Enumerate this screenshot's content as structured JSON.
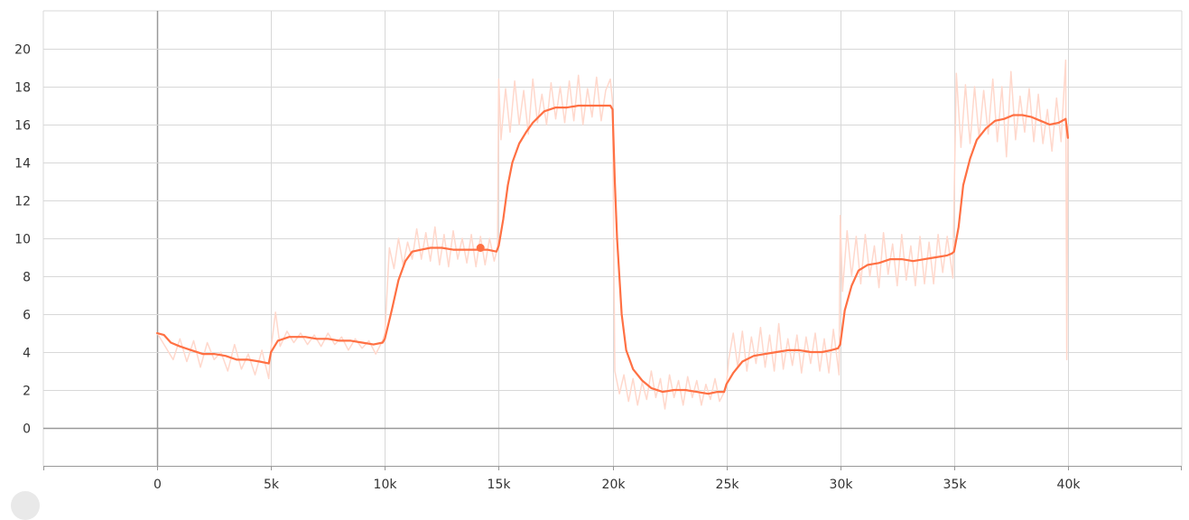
{
  "chart_data": {
    "type": "line",
    "title": "",
    "xlabel": "",
    "ylabel": "",
    "xlim": [
      -5000,
      45000
    ],
    "ylim": [
      -2,
      22
    ],
    "grid": true,
    "x_ticks": [
      {
        "value": 0,
        "label": "0"
      },
      {
        "value": 5000,
        "label": "5k"
      },
      {
        "value": 10000,
        "label": "10k"
      },
      {
        "value": 15000,
        "label": "15k"
      },
      {
        "value": 20000,
        "label": "20k"
      },
      {
        "value": 25000,
        "label": "25k"
      },
      {
        "value": 30000,
        "label": "30k"
      },
      {
        "value": 35000,
        "label": "35k"
      },
      {
        "value": 40000,
        "label": "40k"
      }
    ],
    "y_ticks": [
      {
        "value": 0,
        "label": "0"
      },
      {
        "value": 2,
        "label": "2"
      },
      {
        "value": 4,
        "label": "4"
      },
      {
        "value": 6,
        "label": "6"
      },
      {
        "value": 8,
        "label": "8"
      },
      {
        "value": 10,
        "label": "10"
      },
      {
        "value": 12,
        "label": "12"
      },
      {
        "value": 14,
        "label": "14"
      },
      {
        "value": 16,
        "label": "16"
      },
      {
        "value": 18,
        "label": "18"
      },
      {
        "value": 20,
        "label": "20"
      }
    ],
    "colors": {
      "smoothed": "#ff7043",
      "raw": "#ffd8cc",
      "grid": "#d8d8d8",
      "axis": "#999999"
    },
    "series": [
      {
        "role": "smoothed",
        "x": [
          0,
          300,
          600,
          1000,
          1500,
          2000,
          2500,
          3000,
          3500,
          4000,
          4500,
          4900,
          5000,
          5300,
          5800,
          6500,
          7000,
          7500,
          8000,
          8500,
          9000,
          9500,
          9900,
          10000,
          10300,
          10600,
          10900,
          11200,
          11600,
          12000,
          12500,
          13000,
          13500,
          14000,
          14500,
          14900,
          15000,
          15200,
          15400,
          15600,
          15900,
          16200,
          16500,
          17000,
          17500,
          18000,
          18500,
          19000,
          19500,
          19900,
          20000,
          20100,
          20200,
          20400,
          20600,
          20900,
          21300,
          21700,
          22200,
          22700,
          23200,
          23700,
          24200,
          24600,
          24900,
          25000,
          25300,
          25700,
          26200,
          26700,
          27200,
          27700,
          28200,
          28700,
          29200,
          29600,
          29900,
          30000,
          30200,
          30500,
          30800,
          31200,
          31700,
          32200,
          32700,
          33200,
          33700,
          34200,
          34700,
          34900,
          35000,
          35200,
          35400,
          35700,
          36000,
          36400,
          36800,
          37200,
          37600,
          38000,
          38400,
          38800,
          39200,
          39600,
          39900,
          40000
        ],
        "values": [
          5.0,
          4.9,
          4.5,
          4.3,
          4.1,
          3.9,
          3.9,
          3.8,
          3.6,
          3.6,
          3.5,
          3.4,
          4.0,
          4.6,
          4.8,
          4.8,
          4.7,
          4.7,
          4.6,
          4.6,
          4.5,
          4.4,
          4.5,
          4.7,
          6.2,
          7.8,
          8.8,
          9.3,
          9.4,
          9.5,
          9.5,
          9.4,
          9.4,
          9.4,
          9.4,
          9.3,
          9.6,
          11.0,
          12.8,
          14.0,
          15.0,
          15.6,
          16.1,
          16.7,
          16.9,
          16.9,
          17.0,
          17.0,
          17.0,
          17.0,
          16.8,
          13.0,
          10.0,
          6.0,
          4.1,
          3.1,
          2.5,
          2.1,
          1.9,
          2.0,
          2.0,
          1.9,
          1.8,
          1.9,
          1.9,
          2.3,
          2.9,
          3.5,
          3.8,
          3.9,
          4.0,
          4.1,
          4.1,
          4.0,
          4.0,
          4.1,
          4.2,
          4.4,
          6.2,
          7.5,
          8.3,
          8.6,
          8.7,
          8.9,
          8.9,
          8.8,
          8.9,
          9.0,
          9.1,
          9.2,
          9.3,
          10.6,
          12.8,
          14.2,
          15.2,
          15.8,
          16.2,
          16.3,
          16.5,
          16.5,
          16.4,
          16.2,
          16.0,
          16.1,
          16.3,
          15.3
        ]
      },
      {
        "role": "raw",
        "x": [
          0,
          400,
          700,
          1000,
          1300,
          1600,
          1900,
          2200,
          2500,
          2800,
          3100,
          3400,
          3700,
          4000,
          4300,
          4600,
          4900,
          5000,
          5200,
          5400,
          5700,
          6000,
          6300,
          6600,
          6900,
          7200,
          7500,
          7800,
          8100,
          8400,
          8700,
          9000,
          9300,
          9600,
          9900,
          10000,
          10200,
          10400,
          10600,
          10800,
          11000,
          11200,
          11400,
          11600,
          11800,
          12000,
          12200,
          12400,
          12600,
          12800,
          13000,
          13200,
          13400,
          13600,
          13800,
          14000,
          14200,
          14400,
          14600,
          14800,
          14950,
          15000,
          15100,
          15300,
          15500,
          15700,
          15900,
          16100,
          16300,
          16500,
          16700,
          16900,
          17100,
          17300,
          17500,
          17700,
          17900,
          18100,
          18300,
          18500,
          18700,
          18900,
          19100,
          19300,
          19500,
          19700,
          19900,
          20000,
          20100,
          20300,
          20500,
          20700,
          20900,
          21100,
          21300,
          21500,
          21700,
          21900,
          22100,
          22300,
          22500,
          22700,
          22900,
          23100,
          23300,
          23500,
          23700,
          23900,
          24100,
          24300,
          24500,
          24700,
          24950,
          25000,
          25100,
          25300,
          25500,
          25700,
          25900,
          26100,
          26300,
          26500,
          26700,
          26900,
          27100,
          27300,
          27500,
          27700,
          27900,
          28100,
          28300,
          28500,
          28700,
          28900,
          29100,
          29300,
          29500,
          29700,
          29950,
          30000,
          30100,
          30300,
          30500,
          30700,
          30900,
          31100,
          31300,
          31500,
          31700,
          31900,
          32100,
          32300,
          32500,
          32700,
          32900,
          33100,
          33300,
          33500,
          33700,
          33900,
          34100,
          34300,
          34500,
          34700,
          34950,
          35000,
          35100,
          35300,
          35500,
          35700,
          35900,
          36100,
          36300,
          36500,
          36700,
          36900,
          37100,
          37300,
          37500,
          37700,
          37900,
          38100,
          38300,
          38500,
          38700,
          38900,
          39100,
          39300,
          39500,
          39700,
          39900,
          39950,
          40000
        ],
        "values": [
          5.0,
          4.2,
          3.6,
          4.7,
          3.5,
          4.6,
          3.2,
          4.5,
          3.6,
          4.0,
          3.0,
          4.4,
          3.1,
          3.9,
          2.8,
          4.1,
          2.6,
          4.2,
          6.1,
          4.3,
          5.1,
          4.5,
          5.0,
          4.4,
          4.9,
          4.3,
          5.0,
          4.4,
          4.8,
          4.1,
          4.7,
          4.2,
          4.6,
          3.9,
          4.6,
          5.0,
          9.5,
          8.4,
          10.0,
          8.6,
          9.8,
          8.9,
          10.5,
          8.9,
          10.3,
          8.8,
          10.6,
          8.6,
          10.2,
          8.5,
          10.4,
          8.9,
          10.0,
          8.7,
          10.2,
          8.5,
          10.1,
          8.6,
          10.0,
          8.8,
          9.5,
          18.4,
          15.2,
          17.9,
          15.6,
          18.3,
          16.0,
          17.8,
          15.5,
          18.4,
          16.1,
          17.6,
          16.0,
          18.2,
          16.3,
          18.0,
          16.1,
          18.3,
          16.2,
          18.6,
          16.0,
          17.9,
          16.4,
          18.5,
          16.2,
          17.8,
          18.4,
          17.2,
          3.0,
          1.8,
          2.8,
          1.4,
          2.6,
          1.2,
          2.4,
          1.5,
          3.0,
          1.6,
          2.6,
          1.0,
          2.8,
          1.6,
          2.5,
          1.2,
          2.7,
          1.6,
          2.5,
          1.2,
          2.3,
          1.5,
          2.6,
          1.4,
          2.0,
          2.2,
          3.6,
          5.0,
          3.2,
          5.1,
          3.0,
          4.8,
          3.4,
          5.3,
          3.2,
          4.9,
          3.0,
          5.5,
          3.1,
          4.7,
          3.3,
          4.9,
          2.9,
          4.8,
          3.4,
          5.0,
          3.0,
          4.7,
          2.9,
          5.2,
          2.8,
          11.2,
          7.2,
          10.4,
          8.0,
          10.1,
          7.6,
          10.2,
          8.0,
          9.6,
          7.4,
          10.3,
          8.1,
          9.7,
          7.5,
          10.2,
          7.8,
          9.6,
          7.5,
          10.1,
          7.6,
          9.8,
          7.6,
          10.2,
          8.2,
          10.1,
          7.9,
          12.0,
          18.7,
          14.8,
          18.1,
          15.0,
          18.0,
          15.3,
          17.8,
          15.5,
          18.4,
          15.1,
          18.0,
          14.3,
          18.8,
          15.2,
          17.5,
          15.6,
          17.9,
          15.1,
          17.6,
          15.0,
          16.8,
          14.6,
          17.4,
          15.1,
          19.4,
          3.6,
          16.0
        ]
      }
    ],
    "highlight_point": {
      "x": 14200,
      "y": 9.5
    }
  }
}
